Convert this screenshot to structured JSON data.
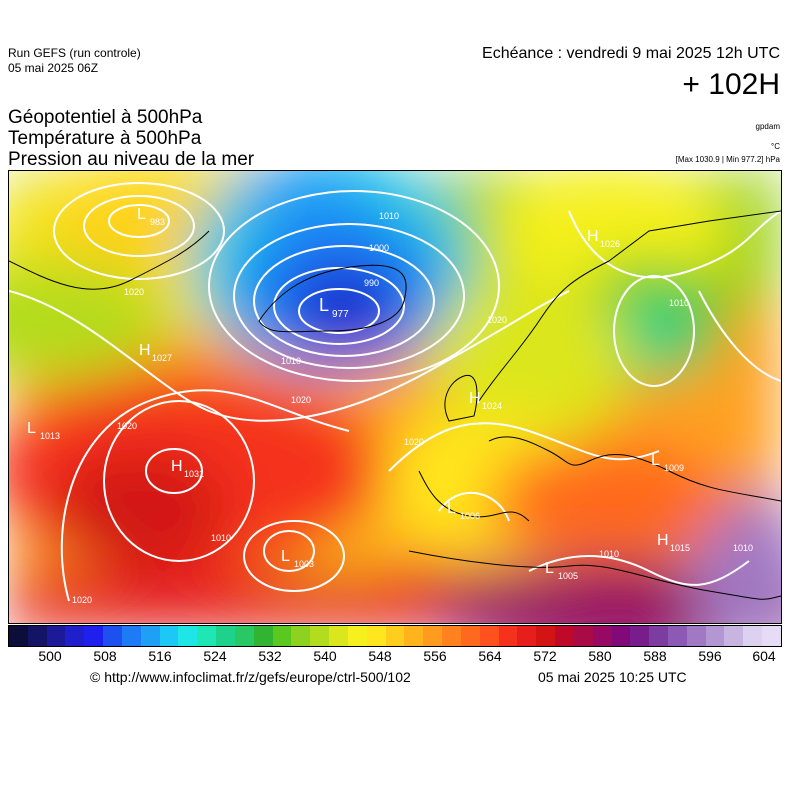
{
  "header": {
    "run_name": "Run GEFS (run controle)",
    "run_date": "05 mai 2025 06Z",
    "echeance": "Echéance : vendredi 9 mai 2025 12h UTC",
    "lead_time": "+ 102H"
  },
  "titles": {
    "line1": "Géopotentiel à 500hPa",
    "line2": "Température à 500hPa",
    "line3": "Pression au niveau de la mer"
  },
  "units": {
    "geopotential": "gpdam",
    "temperature": "°C",
    "pressure_range": "[Max 1030.9 | Min 977.2] hPa"
  },
  "pressure_centers": [
    {
      "type": "L",
      "value": "983"
    },
    {
      "type": "L",
      "value": "977"
    },
    {
      "type": "H",
      "value": "1027"
    },
    {
      "type": "L",
      "value": "1013"
    },
    {
      "type": "H",
      "value": "1031"
    },
    {
      "type": "L",
      "value": "1003"
    },
    {
      "type": "H",
      "value": "1024"
    },
    {
      "type": "L",
      "value": "1006"
    },
    {
      "type": "L",
      "value": "1005"
    },
    {
      "type": "H",
      "value": "1015"
    },
    {
      "type": "L",
      "value": "1009"
    },
    {
      "type": "H",
      "value": "1026"
    }
  ],
  "isobar_labels": [
    "1020",
    "1010",
    "1000",
    "990",
    "1020",
    "1010",
    "1020",
    "1020",
    "1010",
    "1020",
    "1020",
    "1010",
    "1010",
    "1010"
  ],
  "colorbar": {
    "tick_labels": [
      "500",
      "508",
      "516",
      "524",
      "532",
      "540",
      "548",
      "556",
      "564",
      "572",
      "580",
      "588",
      "596",
      "604"
    ],
    "colors": [
      "#0d0d3a",
      "#141466",
      "#1b1b99",
      "#1f1fcc",
      "#2020ee",
      "#1e50f0",
      "#1e7af5",
      "#1ea0f5",
      "#1ec8f5",
      "#1ee6e6",
      "#1ee6b4",
      "#1ed28c",
      "#28c864",
      "#32b432",
      "#5ac81e",
      "#8cd21e",
      "#b4dc1e",
      "#dce61e",
      "#f5f01e",
      "#ffe61e",
      "#ffcd1e",
      "#ffb41e",
      "#ff9b1e",
      "#ff821e",
      "#ff691e",
      "#ff501e",
      "#f5321e",
      "#e61e1e",
      "#d21414",
      "#be0a28",
      "#aa0a46",
      "#960a64",
      "#820a78",
      "#781e8c",
      "#7d3ca0",
      "#8c5ab4",
      "#a078c3",
      "#b496d2",
      "#c8b4e1",
      "#dcd2f0"
    ],
    "high_color": "#e6dcf5"
  },
  "footer": {
    "credit": "© http://www.infoclimat.fr/z/gefs/europe/ctrl-500/102",
    "generated": "05 mai 2025 10:25 UTC"
  }
}
